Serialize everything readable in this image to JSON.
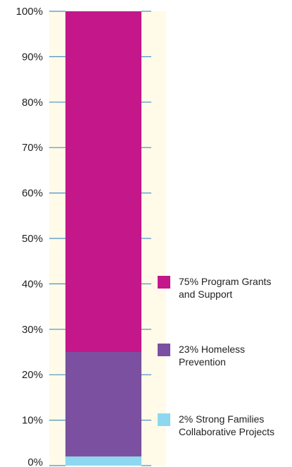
{
  "chart_data": {
    "type": "bar",
    "stacked": true,
    "categories": [
      ""
    ],
    "series": [
      {
        "name": "2% Strong Families Collaborative Projects",
        "values": [
          2
        ],
        "color": "#8dd8f0"
      },
      {
        "name": "23% Homeless Prevention",
        "values": [
          23
        ],
        "color": "#7b50a0"
      },
      {
        "name": "75% Program Grants and Support",
        "values": [
          75
        ],
        "color": "#c4178a"
      }
    ],
    "ylim": [
      0,
      100
    ],
    "y_ticks": [
      "0%",
      "10%",
      "20%",
      "30%",
      "40%",
      "50%",
      "60%",
      "70%",
      "80%",
      "90%",
      "100%"
    ],
    "legend_position": "right",
    "colors": {
      "plot_background": "#fffbe8",
      "tick_line": "#4a90c8"
    }
  },
  "legend": {
    "items": [
      {
        "lines": [
          "75% Program Grants",
          "and Support"
        ],
        "color": "#c4178a"
      },
      {
        "lines": [
          "23% Homeless",
          "Prevention"
        ],
        "color": "#7b50a0"
      },
      {
        "lines": [
          "2% Strong Families",
          "Collaborative Projects"
        ],
        "color": "#8dd8f0"
      }
    ]
  }
}
